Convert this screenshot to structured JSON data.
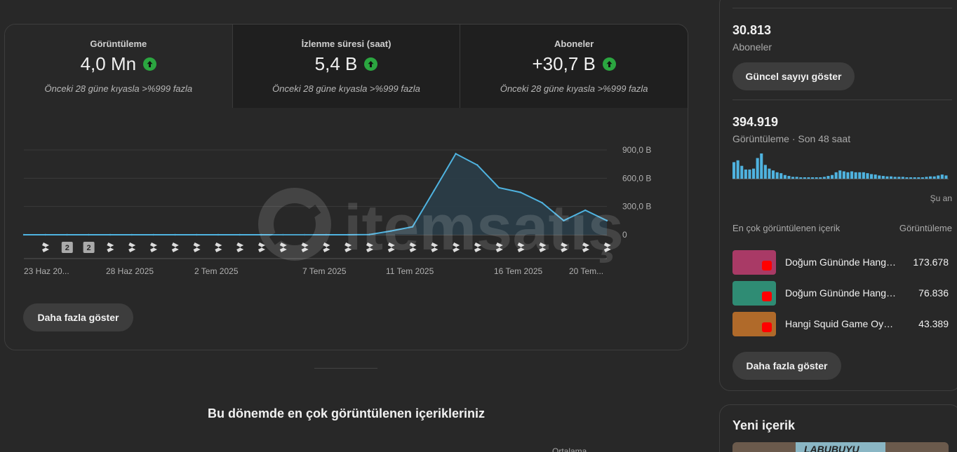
{
  "metrics": [
    {
      "label": "Görüntüleme",
      "value": "4,0 Mn",
      "sub": "Önceki 28 güne kıyasla >%999 fazla"
    },
    {
      "label": "İzlenme süresi (saat)",
      "value": "5,4 B",
      "sub": "Önceki 28 güne kıyasla >%999 fazla"
    },
    {
      "label": "Aboneler",
      "value": "+30,7 B",
      "sub": "Önceki 28 güne kıyasla >%999 fazla"
    }
  ],
  "chart_data": {
    "type": "area",
    "y_tick_labels": [
      "900,0 B",
      "600,0 B",
      "300,0 B",
      "0"
    ],
    "ylim": [
      0,
      900000
    ],
    "x_tick_labels": [
      "23 Haz 20...",
      "28 Haz 2025",
      "2 Tem 2025",
      "7 Tem 2025",
      "11 Tem 2025",
      "16 Tem 2025",
      "20 Tem..."
    ],
    "x_day_index": [
      0,
      1,
      2,
      3,
      4,
      5,
      6,
      7,
      8,
      9,
      10,
      11,
      12,
      13,
      14,
      15,
      16,
      17,
      18,
      19,
      20,
      21,
      22,
      23,
      24,
      25,
      26,
      27
    ],
    "values": [
      0,
      0,
      0,
      0,
      0,
      0,
      0,
      0,
      0,
      0,
      0,
      0,
      0,
      0,
      0,
      0,
      2000,
      40000,
      85000,
      470000,
      860000,
      740000,
      500000,
      450000,
      340000,
      150000,
      260000,
      150000
    ],
    "upload_markers": [
      "shorts",
      "2",
      "2",
      "shorts",
      "shorts",
      "shorts",
      "shorts",
      "shorts",
      "shorts",
      "shorts",
      "shorts",
      "shorts",
      "shorts",
      "shorts",
      "shorts",
      "shorts",
      "shorts",
      "shorts",
      "shorts",
      "shorts",
      "shorts",
      "shorts",
      "shorts",
      "shorts",
      "shorts",
      "shorts",
      "shorts"
    ],
    "colors": {
      "line": "#4fb3e0",
      "fill": "#2a3d48",
      "grid": "#3a3a3a"
    }
  },
  "buttons": {
    "more_main": "Daha fazla göster",
    "live_count": "Güncel sayıyı göster",
    "more_side": "Daha fazla göster"
  },
  "section_title": "Bu dönemde en çok görüntülenen içerikleriniz",
  "ortalama": "Ortalama",
  "side": {
    "subs_value": "30.813",
    "subs_label": "Aboneler",
    "views_value": "394.919",
    "views_label": "Görüntüleme · Son 48 saat",
    "now_label": "Şu an",
    "mini_bars": [
      36,
      40,
      28,
      20,
      20,
      22,
      45,
      58,
      30,
      22,
      18,
      14,
      12,
      8,
      6,
      4,
      4,
      3,
      3,
      3,
      3,
      3,
      3,
      4,
      6,
      8,
      14,
      18,
      16,
      14,
      16,
      14,
      14,
      14,
      12,
      10,
      9,
      7,
      6,
      5,
      5,
      4,
      4,
      4,
      3,
      3,
      3,
      3,
      3,
      4,
      5,
      5,
      7,
      9,
      7
    ],
    "top_header_left": "En çok görüntülenen içerik",
    "top_header_right": "Görüntüleme",
    "top_items": [
      {
        "title": "Doğum Gününde Hangi Labubu Çıkacak?",
        "value": "173.678",
        "color": "#a93a66"
      },
      {
        "title": "Doğum Gününde Hangi Squid Game Oyuncusu?",
        "value": "76.836",
        "color": "#2f8c74"
      },
      {
        "title": "Hangi Squid Game Oyuncusu Olacaksın?",
        "value": "43.389",
        "color": "#b06a2a"
      }
    ],
    "new_content_title": "Yeni içerik",
    "new_content_text": "LABUBUYU"
  }
}
